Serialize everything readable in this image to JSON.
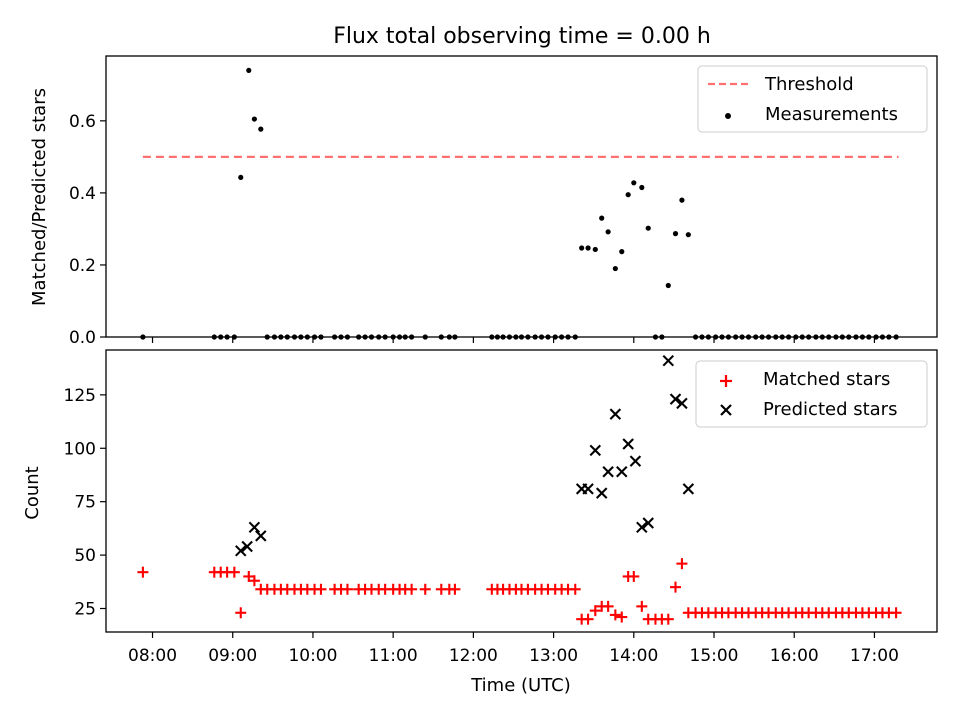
{
  "figure": {
    "title": "Flux total observing time = 0.00 h"
  },
  "chart_data": [
    {
      "type": "scatter",
      "ylabel": "Matched/Predicted stars",
      "xlabel": "",
      "xlim": [
        7.42,
        17.78
      ],
      "ylim": [
        0,
        0.78
      ],
      "yticks": [
        0.0,
        0.2,
        0.4,
        0.6
      ],
      "ytick_labels": [
        "0.0",
        "0.2",
        "0.4",
        "0.6"
      ],
      "xticks": [
        8,
        9,
        10,
        11,
        12,
        13,
        14,
        15,
        16,
        17
      ],
      "show_xtick_labels": false,
      "grid": false,
      "legend": {
        "placement": "top-right",
        "entries": [
          {
            "label": "Threshold",
            "style": "dashed-line",
            "color": "#ff7070"
          },
          {
            "label": "Measurements",
            "style": "dot",
            "color": "#000000"
          }
        ]
      },
      "series": [
        {
          "name": "Threshold",
          "kind": "hline",
          "y": 0.5,
          "x_range": [
            7.88,
            17.3
          ],
          "color": "#ff7070"
        },
        {
          "name": "Measurements",
          "kind": "dots",
          "color": "#000000",
          "points": [
            [
              7.88,
              0.0
            ],
            [
              8.77,
              0.0
            ],
            [
              8.85,
              0.0
            ],
            [
              8.93,
              0.0
            ],
            [
              9.02,
              0.0
            ],
            [
              9.1,
              0.443
            ],
            [
              9.2,
              0.74
            ],
            [
              9.27,
              0.605
            ],
            [
              9.35,
              0.577
            ],
            [
              9.43,
              0.0
            ],
            [
              9.52,
              0.0
            ],
            [
              9.6,
              0.0
            ],
            [
              9.68,
              0.0
            ],
            [
              9.77,
              0.0
            ],
            [
              9.85,
              0.0
            ],
            [
              9.93,
              0.0
            ],
            [
              10.02,
              0.0
            ],
            [
              10.1,
              0.0
            ],
            [
              10.27,
              0.0
            ],
            [
              10.35,
              0.0
            ],
            [
              10.43,
              0.0
            ],
            [
              10.57,
              0.0
            ],
            [
              10.65,
              0.0
            ],
            [
              10.73,
              0.0
            ],
            [
              10.82,
              0.0
            ],
            [
              10.9,
              0.0
            ],
            [
              11.0,
              0.0
            ],
            [
              11.08,
              0.0
            ],
            [
              11.15,
              0.0
            ],
            [
              11.23,
              0.0
            ],
            [
              11.4,
              0.0
            ],
            [
              11.6,
              0.0
            ],
            [
              11.7,
              0.0
            ],
            [
              11.77,
              0.0
            ],
            [
              12.23,
              0.0
            ],
            [
              12.3,
              0.0
            ],
            [
              12.37,
              0.0
            ],
            [
              12.45,
              0.0
            ],
            [
              12.53,
              0.0
            ],
            [
              12.6,
              0.0
            ],
            [
              12.68,
              0.0
            ],
            [
              12.77,
              0.0
            ],
            [
              12.85,
              0.0
            ],
            [
              12.93,
              0.0
            ],
            [
              13.02,
              0.0
            ],
            [
              13.1,
              0.0
            ],
            [
              13.18,
              0.0
            ],
            [
              13.27,
              0.0
            ],
            [
              13.35,
              0.247
            ],
            [
              13.43,
              0.247
            ],
            [
              13.52,
              0.243
            ],
            [
              13.6,
              0.33
            ],
            [
              13.68,
              0.292
            ],
            [
              13.77,
              0.19
            ],
            [
              13.85,
              0.237
            ],
            [
              13.93,
              0.395
            ],
            [
              14.0,
              0.428
            ],
            [
              14.1,
              0.415
            ],
            [
              14.18,
              0.302
            ],
            [
              14.27,
              0.0
            ],
            [
              14.35,
              0.0
            ],
            [
              14.43,
              0.143
            ],
            [
              14.52,
              0.287
            ],
            [
              14.6,
              0.38
            ],
            [
              14.68,
              0.284
            ],
            [
              14.77,
              0.0
            ],
            [
              14.85,
              0.0
            ],
            [
              14.93,
              0.0
            ],
            [
              15.02,
              0.0
            ],
            [
              15.1,
              0.0
            ],
            [
              15.18,
              0.0
            ],
            [
              15.27,
              0.0
            ],
            [
              15.35,
              0.0
            ],
            [
              15.43,
              0.0
            ],
            [
              15.52,
              0.0
            ],
            [
              15.6,
              0.0
            ],
            [
              15.68,
              0.0
            ],
            [
              15.77,
              0.0
            ],
            [
              15.85,
              0.0
            ],
            [
              15.93,
              0.0
            ],
            [
              16.02,
              0.0
            ],
            [
              16.1,
              0.0
            ],
            [
              16.18,
              0.0
            ],
            [
              16.27,
              0.0
            ],
            [
              16.35,
              0.0
            ],
            [
              16.43,
              0.0
            ],
            [
              16.52,
              0.0
            ],
            [
              16.6,
              0.0
            ],
            [
              16.68,
              0.0
            ],
            [
              16.77,
              0.0
            ],
            [
              16.85,
              0.0
            ],
            [
              16.93,
              0.0
            ],
            [
              17.02,
              0.0
            ],
            [
              17.1,
              0.0
            ],
            [
              17.18,
              0.0
            ],
            [
              17.27,
              0.0
            ]
          ]
        }
      ]
    },
    {
      "type": "scatter",
      "ylabel": "Count",
      "xlabel": "Time (UTC)",
      "xlim": [
        7.42,
        17.78
      ],
      "ylim": [
        14,
        146
      ],
      "yticks": [
        25,
        50,
        75,
        100,
        125
      ],
      "ytick_labels": [
        "25",
        "50",
        "75",
        "100",
        "125"
      ],
      "xticks": [
        8,
        9,
        10,
        11,
        12,
        13,
        14,
        15,
        16,
        17
      ],
      "xtick_labels": [
        "08:00",
        "09:00",
        "10:00",
        "11:00",
        "12:00",
        "13:00",
        "14:00",
        "15:00",
        "16:00",
        "17:00"
      ],
      "grid": false,
      "legend": {
        "placement": "top-right",
        "entries": [
          {
            "label": "Matched stars",
            "style": "plus",
            "color": "#ff0000"
          },
          {
            "label": "Predicted stars",
            "style": "cross",
            "color": "#000000"
          }
        ]
      },
      "series": [
        {
          "name": "Matched stars",
          "kind": "plus",
          "color": "#ff0000",
          "points": [
            [
              7.88,
              42
            ],
            [
              8.77,
              42
            ],
            [
              8.85,
              42
            ],
            [
              8.93,
              42
            ],
            [
              9.02,
              42
            ],
            [
              9.1,
              23
            ],
            [
              9.2,
              40
            ],
            [
              9.27,
              38
            ],
            [
              9.35,
              34
            ],
            [
              9.43,
              34
            ],
            [
              9.52,
              34
            ],
            [
              9.6,
              34
            ],
            [
              9.68,
              34
            ],
            [
              9.77,
              34
            ],
            [
              9.85,
              34
            ],
            [
              9.93,
              34
            ],
            [
              10.02,
              34
            ],
            [
              10.1,
              34
            ],
            [
              10.27,
              34
            ],
            [
              10.35,
              34
            ],
            [
              10.43,
              34
            ],
            [
              10.57,
              34
            ],
            [
              10.65,
              34
            ],
            [
              10.73,
              34
            ],
            [
              10.82,
              34
            ],
            [
              10.9,
              34
            ],
            [
              11.0,
              34
            ],
            [
              11.08,
              34
            ],
            [
              11.15,
              34
            ],
            [
              11.23,
              34
            ],
            [
              11.4,
              34
            ],
            [
              11.6,
              34
            ],
            [
              11.7,
              34
            ],
            [
              11.77,
              34
            ],
            [
              12.23,
              34
            ],
            [
              12.3,
              34
            ],
            [
              12.37,
              34
            ],
            [
              12.45,
              34
            ],
            [
              12.53,
              34
            ],
            [
              12.6,
              34
            ],
            [
              12.68,
              34
            ],
            [
              12.77,
              34
            ],
            [
              12.85,
              34
            ],
            [
              12.93,
              34
            ],
            [
              13.02,
              34
            ],
            [
              13.1,
              34
            ],
            [
              13.18,
              34
            ],
            [
              13.27,
              34
            ],
            [
              13.35,
              20
            ],
            [
              13.43,
              20
            ],
            [
              13.52,
              24
            ],
            [
              13.6,
              26
            ],
            [
              13.68,
              26
            ],
            [
              13.77,
              22
            ],
            [
              13.85,
              21
            ],
            [
              13.93,
              40
            ],
            [
              14.0,
              40
            ],
            [
              14.1,
              26
            ],
            [
              14.18,
              20
            ],
            [
              14.27,
              20
            ],
            [
              14.35,
              20
            ],
            [
              14.43,
              20
            ],
            [
              14.52,
              35
            ],
            [
              14.6,
              46
            ],
            [
              14.68,
              23
            ],
            [
              14.77,
              23
            ],
            [
              14.85,
              23
            ],
            [
              14.93,
              23
            ],
            [
              15.02,
              23
            ],
            [
              15.1,
              23
            ],
            [
              15.18,
              23
            ],
            [
              15.27,
              23
            ],
            [
              15.35,
              23
            ],
            [
              15.43,
              23
            ],
            [
              15.52,
              23
            ],
            [
              15.6,
              23
            ],
            [
              15.68,
              23
            ],
            [
              15.77,
              23
            ],
            [
              15.85,
              23
            ],
            [
              15.93,
              23
            ],
            [
              16.02,
              23
            ],
            [
              16.1,
              23
            ],
            [
              16.18,
              23
            ],
            [
              16.27,
              23
            ],
            [
              16.35,
              23
            ],
            [
              16.43,
              23
            ],
            [
              16.52,
              23
            ],
            [
              16.6,
              23
            ],
            [
              16.68,
              23
            ],
            [
              16.77,
              23
            ],
            [
              16.85,
              23
            ],
            [
              16.93,
              23
            ],
            [
              17.02,
              23
            ],
            [
              17.1,
              23
            ],
            [
              17.18,
              23
            ],
            [
              17.27,
              23
            ]
          ]
        },
        {
          "name": "Predicted stars",
          "kind": "cross",
          "color": "#000000",
          "points": [
            [
              9.1,
              52
            ],
            [
              9.18,
              54
            ],
            [
              9.27,
              63
            ],
            [
              9.35,
              59
            ],
            [
              13.35,
              81
            ],
            [
              13.43,
              81
            ],
            [
              13.52,
              99
            ],
            [
              13.6,
              79
            ],
            [
              13.68,
              89
            ],
            [
              13.77,
              116
            ],
            [
              13.85,
              89
            ],
            [
              13.93,
              102
            ],
            [
              14.02,
              94
            ],
            [
              14.1,
              63
            ],
            [
              14.18,
              65
            ],
            [
              14.43,
              141
            ],
            [
              14.52,
              123
            ],
            [
              14.6,
              121
            ],
            [
              14.68,
              81
            ]
          ]
        }
      ]
    }
  ]
}
